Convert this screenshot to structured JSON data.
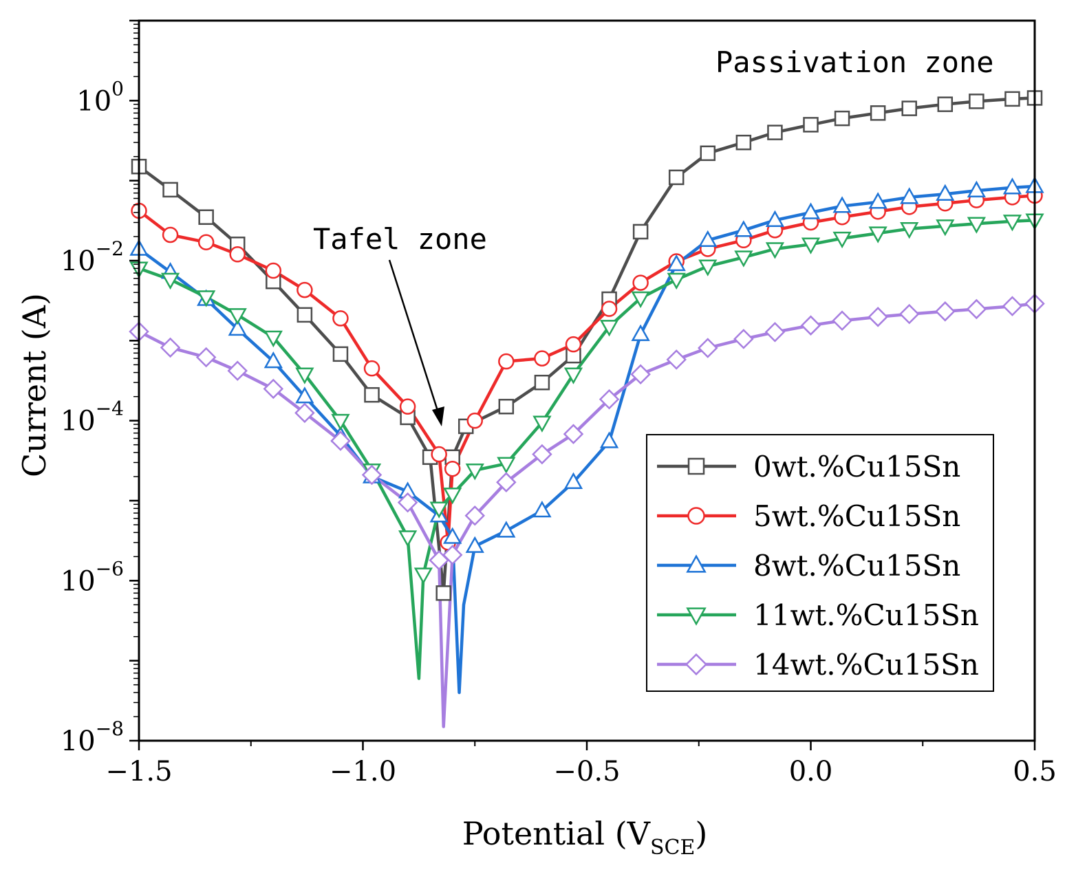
{
  "chart_data": {
    "type": "line",
    "title": "",
    "xlabel_main": "Potential (V",
    "xlabel_sub": "SCE",
    "xlabel_close": ")",
    "ylabel": "Current (A)",
    "xlim": [
      -1.5,
      0.5
    ],
    "ylim_exp": [
      -8,
      1
    ],
    "x_ticks": [
      -1.5,
      -1.0,
      -0.5,
      0.0,
      0.5
    ],
    "x_tick_labels": [
      "−1.5",
      "−1.0",
      "−0.5",
      "0.0",
      "0.5"
    ],
    "y_tick_exps": [
      -8,
      -6,
      -4,
      -2,
      0
    ],
    "y_tick_base": "10",
    "y_tick_sup": [
      "−8",
      "−6",
      "−4",
      "−2",
      "0"
    ],
    "grid": false,
    "annotations": [
      {
        "text": "Tafel zone",
        "points_to": [
          -0.82,
          -4.04
        ]
      },
      {
        "text": "Passivation zone"
      }
    ],
    "legend_position": "bottom-right",
    "series": [
      {
        "name": "0wt.%Cu15Sn",
        "marker": "square",
        "color": "#4d4d4d",
        "x": [
          -1.5,
          -1.43,
          -1.35,
          -1.28,
          -1.2,
          -1.13,
          -1.05,
          -0.98,
          -0.9,
          -0.85,
          -0.82,
          -0.8,
          -0.77,
          -0.68,
          -0.6,
          -0.53,
          -0.45,
          -0.38,
          -0.3,
          -0.23,
          -0.15,
          -0.08,
          0.0,
          0.07,
          0.15,
          0.22,
          0.3,
          0.37,
          0.45,
          0.5
        ],
        "y": [
          0.15,
          0.077,
          0.035,
          0.016,
          0.0055,
          0.0021,
          0.00068,
          0.00021,
          0.00011,
          3.5e-05,
          7e-07,
          3.5e-05,
          8.5e-05,
          0.00015,
          0.0003,
          0.00065,
          0.0033,
          0.023,
          0.11,
          0.22,
          0.3,
          0.4,
          0.5,
          0.6,
          0.7,
          0.8,
          0.9,
          0.98,
          1.05,
          1.08
        ]
      },
      {
        "name": "5wt.%Cu15Sn",
        "marker": "circle",
        "color": "#ee2a2a",
        "x": [
          -1.5,
          -1.43,
          -1.35,
          -1.28,
          -1.2,
          -1.13,
          -1.05,
          -0.98,
          -0.9,
          -0.83,
          -0.81,
          -0.8,
          -0.75,
          -0.68,
          -0.6,
          -0.53,
          -0.45,
          -0.38,
          -0.3,
          -0.23,
          -0.15,
          -0.08,
          0.0,
          0.07,
          0.15,
          0.22,
          0.3,
          0.37,
          0.45,
          0.5
        ],
        "y": [
          0.042,
          0.021,
          0.017,
          0.012,
          0.0075,
          0.0043,
          0.0019,
          0.00045,
          0.00015,
          3.8e-05,
          3e-06,
          2.5e-05,
          0.0001,
          0.00055,
          0.0006,
          0.0009,
          0.0025,
          0.0053,
          0.0098,
          0.014,
          0.018,
          0.024,
          0.03,
          0.035,
          0.041,
          0.047,
          0.052,
          0.057,
          0.062,
          0.065
        ]
      },
      {
        "name": "8wt.%Cu15Sn",
        "marker": "triangle-up",
        "color": "#1f74d6",
        "x": [
          -1.5,
          -1.43,
          -1.35,
          -1.28,
          -1.2,
          -1.13,
          -1.05,
          -0.98,
          -0.9,
          -0.83,
          -0.8,
          -0.785,
          -0.775,
          -0.75,
          -0.68,
          -0.6,
          -0.53,
          -0.45,
          -0.38,
          -0.3,
          -0.23,
          -0.15,
          -0.08,
          0.0,
          0.07,
          0.15,
          0.22,
          0.3,
          0.37,
          0.45,
          0.5
        ],
        "y": [
          0.014,
          0.0072,
          0.0033,
          0.0014,
          0.00055,
          0.0002,
          6.5e-05,
          2e-05,
          1.3e-05,
          6.5e-06,
          3.5e-06,
          4e-08,
          5e-07,
          2.7e-06,
          4.2e-06,
          7.5e-06,
          1.7e-05,
          5.5e-05,
          0.0012,
          0.009,
          0.018,
          0.024,
          0.032,
          0.04,
          0.048,
          0.054,
          0.062,
          0.068,
          0.075,
          0.082,
          0.085
        ]
      },
      {
        "name": "11wt.%Cu15Sn",
        "marker": "triangle-down",
        "color": "#26a65b",
        "x": [
          -1.5,
          -1.43,
          -1.35,
          -1.28,
          -1.2,
          -1.13,
          -1.05,
          -0.98,
          -0.9,
          -0.875,
          -0.865,
          -0.83,
          -0.8,
          -0.75,
          -0.68,
          -0.6,
          -0.53,
          -0.45,
          -0.38,
          -0.3,
          -0.23,
          -0.15,
          -0.08,
          0.0,
          0.07,
          0.15,
          0.22,
          0.3,
          0.37,
          0.45,
          0.5
        ],
        "y": [
          0.008,
          0.0058,
          0.0035,
          0.0021,
          0.0011,
          0.00038,
          0.0001,
          2.4e-05,
          3.5e-06,
          6e-08,
          1.2e-06,
          8e-06,
          1.2e-05,
          2.4e-05,
          2.9e-05,
          9.5e-05,
          0.00038,
          0.0015,
          0.0034,
          0.0058,
          0.0085,
          0.011,
          0.014,
          0.016,
          0.019,
          0.022,
          0.025,
          0.027,
          0.029,
          0.031,
          0.032
        ]
      },
      {
        "name": "14wt.%Cu15Sn",
        "marker": "diamond",
        "color": "#a77ee0",
        "x": [
          -1.5,
          -1.43,
          -1.35,
          -1.28,
          -1.2,
          -1.13,
          -1.05,
          -0.98,
          -0.9,
          -0.83,
          -0.82,
          -0.8,
          -0.75,
          -0.68,
          -0.6,
          -0.53,
          -0.45,
          -0.38,
          -0.3,
          -0.23,
          -0.15,
          -0.08,
          0.0,
          0.07,
          0.15,
          0.22,
          0.3,
          0.37,
          0.45,
          0.5
        ],
        "y": [
          0.0013,
          0.00082,
          0.00062,
          0.00042,
          0.00025,
          0.000125,
          5.6e-05,
          2.1e-05,
          9.5e-06,
          1.8e-06,
          1.5e-08,
          2.1e-06,
          6.5e-06,
          1.7e-05,
          3.8e-05,
          6.8e-05,
          0.000185,
          0.00038,
          0.00058,
          0.00081,
          0.00105,
          0.00128,
          0.00155,
          0.00178,
          0.00198,
          0.00215,
          0.00232,
          0.00248,
          0.0027,
          0.0029
        ]
      }
    ]
  }
}
